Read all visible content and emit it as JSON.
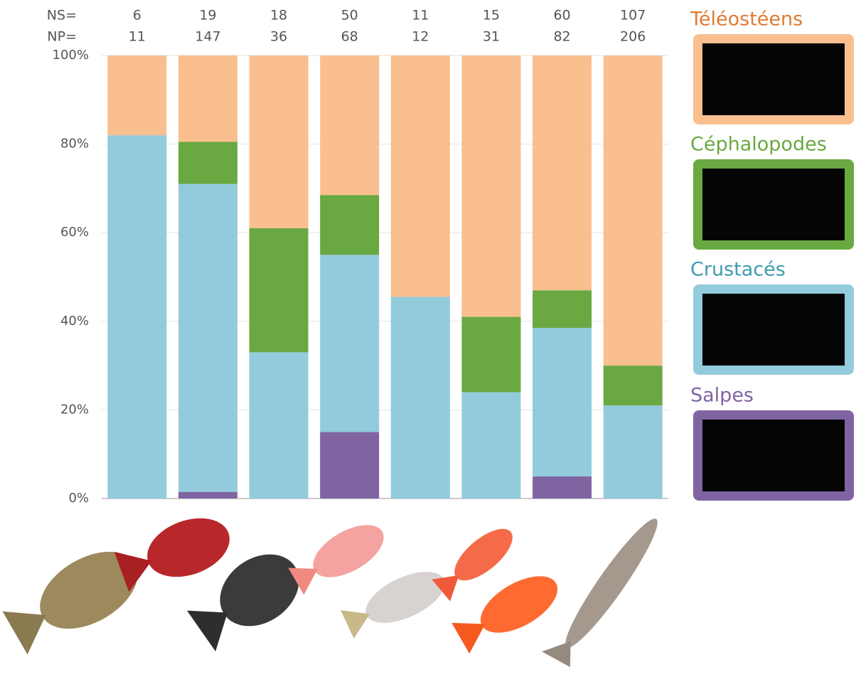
{
  "chart_data": {
    "type": "stacked_bar_100",
    "categories": [
      null,
      null,
      null,
      null,
      null,
      null,
      null,
      null
    ],
    "ns_label": "NS=",
    "ns": [
      6,
      19,
      18,
      50,
      11,
      15,
      60,
      107
    ],
    "np_label": "NP=",
    "np": [
      11,
      147,
      36,
      68,
      12,
      31,
      82,
      206
    ],
    "series": [
      {
        "name": "Salpes",
        "color": "#8064a2",
        "label_color": "#8064a2",
        "values": [
          0,
          1.5,
          0,
          15,
          0,
          0,
          5,
          0
        ]
      },
      {
        "name": "Crustacés",
        "color": "#92cbdc",
        "label_color": "#3e9bb0",
        "values": [
          82,
          69.5,
          33,
          40,
          45.5,
          24,
          33.5,
          21
        ]
      },
      {
        "name": "Céphalopodes",
        "color": "#6aa842",
        "label_color": "#6aa842",
        "values": [
          0,
          9.5,
          28,
          13.5,
          0,
          17,
          8.5,
          9
        ]
      },
      {
        "name": "Téléostéens",
        "color": "#f9bf8f",
        "label_color": "#e07b35",
        "values": [
          18,
          19.5,
          39,
          31.5,
          54.5,
          59,
          53,
          70
        ]
      }
    ],
    "ylim": [
      0,
      100
    ],
    "yticks": [
      {
        "value": 0,
        "label": "0%"
      },
      {
        "value": 20,
        "label": "20%"
      },
      {
        "value": 40,
        "label": "40%"
      },
      {
        "value": 60,
        "label": "60%"
      },
      {
        "value": 80,
        "label": "80%"
      },
      {
        "value": 100,
        "label": "100%"
      }
    ],
    "grid": true,
    "legend": "right"
  }
}
